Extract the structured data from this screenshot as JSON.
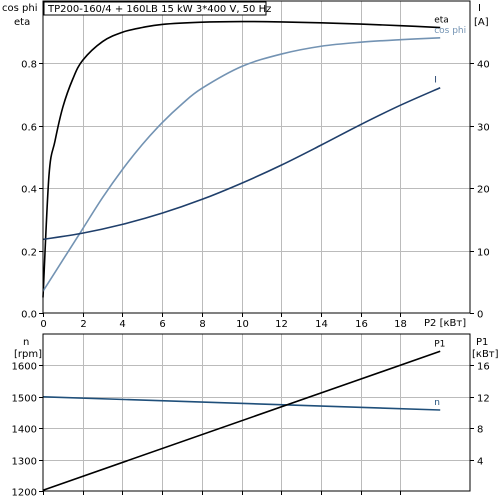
{
  "title": "TP200-160/4 + 160LB   15 kW   3*400 V, 50 Hz",
  "colors": {
    "eta": "#000000",
    "cos_phi": "#7393b3",
    "current": "#1f3f6b",
    "n": "#1f4f7a",
    "p1": "#000000",
    "grid": "#bbbbbb"
  },
  "chart_data": [
    {
      "id": "top",
      "type": "line",
      "left_axis_label": [
        "cos phi",
        "eta"
      ],
      "right_axis_label": [
        "I",
        "[A]"
      ],
      "xlabel": "P2 [кВт]",
      "xlim": [
        0,
        21.5
      ],
      "x_ticks": [
        0,
        2,
        4,
        6,
        8,
        10,
        12,
        14,
        16,
        18
      ],
      "ylim_left": [
        0,
        1.0
      ],
      "y_ticks_left": [
        0.0,
        0.2,
        0.4,
        0.6,
        0.8
      ],
      "y_tick_labels_left": [
        "0.0",
        "0.2",
        "0.4",
        "0.6",
        "0.8"
      ],
      "ylim_right": [
        0,
        50
      ],
      "y_ticks_right": [
        0,
        10,
        20,
        30,
        40
      ],
      "grid": true,
      "series": [
        {
          "name": "eta",
          "axis": "left",
          "color": "#000000",
          "x": [
            0,
            0.3,
            0.6,
            1,
            1.5,
            2,
            3,
            4,
            5,
            6,
            8,
            10,
            12,
            14,
            16,
            18,
            20
          ],
          "y": [
            0.05,
            0.44,
            0.55,
            0.66,
            0.75,
            0.81,
            0.87,
            0.9,
            0.915,
            0.925,
            0.932,
            0.934,
            0.933,
            0.93,
            0.926,
            0.921,
            0.915
          ]
        },
        {
          "name": "cos phi",
          "axis": "left",
          "color": "#7393b3",
          "x": [
            0,
            1,
            2,
            3,
            4,
            5,
            6,
            7,
            8,
            10,
            12,
            14,
            16,
            18,
            20
          ],
          "y": [
            0.07,
            0.17,
            0.27,
            0.37,
            0.46,
            0.54,
            0.61,
            0.67,
            0.72,
            0.79,
            0.83,
            0.855,
            0.868,
            0.876,
            0.882
          ]
        },
        {
          "name": "I",
          "axis": "right",
          "color": "#1f3f6b",
          "x": [
            0,
            2,
            4,
            6,
            8,
            10,
            12,
            14,
            16,
            18,
            20
          ],
          "y": [
            11.8,
            12.8,
            14.2,
            16.0,
            18.2,
            20.8,
            23.7,
            26.9,
            30.2,
            33.3,
            36.1
          ]
        }
      ]
    },
    {
      "id": "bottom",
      "type": "line",
      "left_axis_label": [
        "n",
        "[rpm]"
      ],
      "right_axis_label": [
        "P1",
        "[кВт]"
      ],
      "xlim": [
        0,
        21.5
      ],
      "ylim_left": [
        1200,
        1700
      ],
      "y_ticks_left": [
        1200,
        1300,
        1400,
        1500,
        1600
      ],
      "ylim_right": [
        0,
        20
      ],
      "y_ticks_right": [
        4,
        8,
        12,
        16
      ],
      "grid": true,
      "series": [
        {
          "name": "n",
          "axis": "left",
          "color": "#1f4f7a",
          "x": [
            0,
            20
          ],
          "y": [
            1500,
            1458
          ]
        },
        {
          "name": "P1",
          "axis": "right",
          "color": "#000000",
          "x": [
            0,
            20
          ],
          "y": [
            0.1,
            17.8
          ]
        }
      ]
    }
  ]
}
